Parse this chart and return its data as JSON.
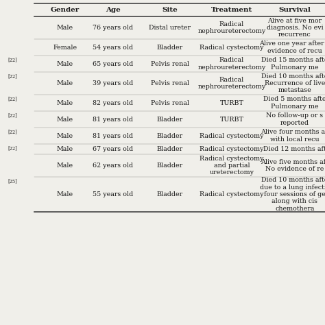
{
  "headers": [
    "Gender",
    "Age",
    "Site",
    "Treatment",
    "Survival"
  ],
  "rows": [
    {
      "ref": "",
      "gender": "Male",
      "age": "76 years old",
      "site": "Distal ureter",
      "treatment": "Radical\nnephroureterectomy",
      "survival": "Alive at five mor\ndiagnosis. No evi\nrecurrenc"
    },
    {
      "ref": "",
      "gender": "Female",
      "age": "54 years old",
      "site": "Bladder",
      "treatment": "Radical cystectomy",
      "survival": "Alive one year after a\nevidence of recu"
    },
    {
      "ref": "[22]",
      "gender": "Male",
      "age": "65 years old",
      "site": "Pelvis renal",
      "treatment": "Radical\nnephroureterectomy",
      "survival": "Died 15 months afte\nPulmonary me"
    },
    {
      "ref": "[22]",
      "gender": "Male",
      "age": "39 years old",
      "site": "Pelvis renal",
      "treatment": "Radical\nnephroureterectomy",
      "survival": "Died 10 months afte\nRecurrence of live\nmetastase"
    },
    {
      "ref": "[22]",
      "gender": "Male",
      "age": "82 years old",
      "site": "Pelvis renal",
      "treatment": "TURBT",
      "survival": "Died 5 months afte\nPulmonary me"
    },
    {
      "ref": "[22]",
      "gender": "Male",
      "age": "81 years old",
      "site": "Bladder",
      "treatment": "TURBT",
      "survival": "No follow-up or s\nreported"
    },
    {
      "ref": "[22]",
      "gender": "Male",
      "age": "81 years old",
      "site": "Bladder",
      "treatment": "Radical cystectomy",
      "survival": "Alive four months afi\nwith local recu"
    },
    {
      "ref": "[22]",
      "gender": "Male",
      "age": "67 years old",
      "site": "Bladder",
      "treatment": "Radical cystectomy",
      "survival": "Died 12 months aft"
    },
    {
      "ref": "",
      "gender": "Male",
      "age": "62 years old",
      "site": "Bladder",
      "treatment": "Radical cystectomy\nand partial\nureterectomy",
      "survival": "Alive five months aft\nNo evidence of re"
    },
    {
      "ref": "[25]",
      "gender": "Male",
      "age": "55 years old",
      "site": "Bladder",
      "treatment": "Radical cystectomy",
      "survival": "Died 10 months afte\ndue to a lung infectio\nfour sessions of ge\nalong with cis\nchemothera"
    }
  ],
  "bg_color": "#f0efea",
  "text_color": "#1a1a1a",
  "line_color": "#444444",
  "header_font_size": 7.5,
  "body_font_size": 6.8,
  "ref_font_size": 4.8
}
